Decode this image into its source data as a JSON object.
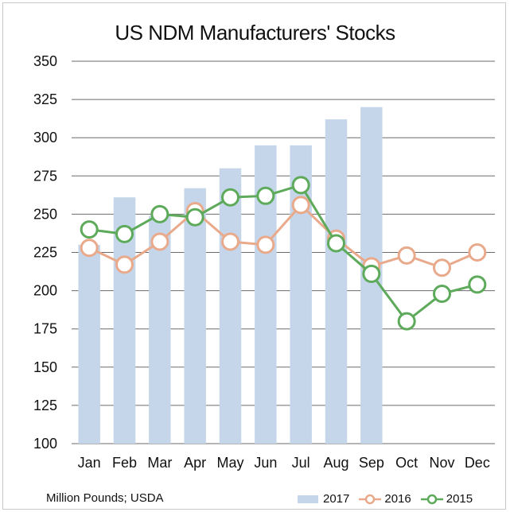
{
  "chart_data": {
    "type": "bar",
    "title": "US NDM Manufacturers' Stocks",
    "footnote": "Million Pounds; USDA",
    "xlabel": "",
    "ylabel": "",
    "ylim": [
      100,
      350
    ],
    "yticks": [
      100,
      125,
      150,
      175,
      200,
      225,
      250,
      275,
      300,
      325,
      350
    ],
    "categories": [
      "Jan",
      "Feb",
      "Mar",
      "Apr",
      "May",
      "Jun",
      "Jul",
      "Aug",
      "Sep",
      "Oct",
      "Nov",
      "Dec"
    ],
    "grid": "horizontal",
    "legend_position": "bottom-right",
    "series": [
      {
        "name": "2017",
        "kind": "bar",
        "color": "#c5d6ea",
        "values": [
          230,
          261,
          249,
          267,
          280,
          295,
          295,
          312,
          320,
          null,
          null,
          null
        ]
      },
      {
        "name": "2016",
        "kind": "line",
        "color": "#e9a98b",
        "values": [
          228,
          217,
          232,
          252,
          232,
          230,
          256,
          234,
          216,
          223,
          215,
          225
        ]
      },
      {
        "name": "2015",
        "kind": "line",
        "color": "#5daa5a",
        "values": [
          240,
          237,
          250,
          248,
          261,
          262,
          269,
          231,
          211,
          180,
          198,
          204
        ]
      }
    ]
  }
}
